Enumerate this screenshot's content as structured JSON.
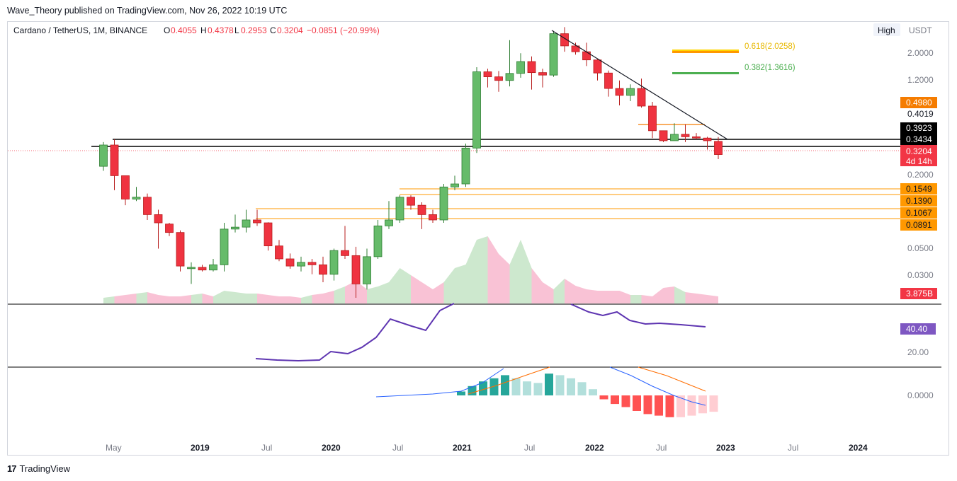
{
  "header": {
    "published_text": "Wave_Theory published on TradingView.com, Nov 26, 2022 10:19 UTC"
  },
  "legend": {
    "symbol": "Cardano / TetherUS, 1M, BINANCE",
    "o_label": "O",
    "o_value": "0.4055",
    "h_label": "H",
    "h_value": "0.4378",
    "l_label": "L",
    "l_value": "0.2953",
    "c_label": "C",
    "c_value": "0.3204",
    "change": "−0.0851 (−20.99%)"
  },
  "controls": {
    "scale_mode": "High",
    "currency": "USDT"
  },
  "colors": {
    "up": "#26a69a",
    "up_body": "#4caf50",
    "down": "#f23645",
    "orange": "#ff9800",
    "black": "#000000",
    "purple": "#7e57c2",
    "macd_blue": "#2962ff"
  },
  "fib_levels": [
    {
      "label": "0.618(2.0258)",
      "color": "#ffd500"
    },
    {
      "label": "0.382(1.3616)",
      "color": "#4caf50"
    }
  ],
  "price_axis": {
    "ticks": [
      "2.0000",
      "1.2000",
      "0.4019",
      "0.2000",
      "0.0500",
      "0.0300"
    ]
  },
  "price_labels": [
    {
      "text": "0.4980",
      "bg": "#f57c00",
      "fg": "#ffffff"
    },
    {
      "text": "0.3923",
      "bg": "#000000",
      "fg": "#ffffff"
    },
    {
      "text": "0.3434",
      "bg": "#000000",
      "fg": "#ffffff"
    },
    {
      "text": "0.3204",
      "bg": "#f23645",
      "fg": "#ffffff"
    },
    {
      "text": "4d 14h",
      "bg": "#f23645",
      "fg": "#ffffff"
    },
    {
      "text": "0.1549",
      "bg": "#ff9800",
      "fg": "#131722"
    },
    {
      "text": "0.1390",
      "bg": "#ff9800",
      "fg": "#131722"
    },
    {
      "text": "0.1067",
      "bg": "#ff9800",
      "fg": "#131722"
    },
    {
      "text": "0.0891",
      "bg": "#ff9800",
      "fg": "#131722"
    }
  ],
  "volume_label": "3.875B",
  "rsi": {
    "value_label": "40.40",
    "tick_mid": "20.00"
  },
  "macd": {
    "tick_zero": "0.0000"
  },
  "time_axis": [
    "May",
    "2019",
    "Jul",
    "2020",
    "Jul",
    "2021",
    "Jul",
    "2022",
    "Jul",
    "2023",
    "Jul",
    "2024"
  ],
  "footer": {
    "brand": "TradingView"
  },
  "chart_data": {
    "type": "candlestick",
    "title": "Cardano / TetherUS, 1M, BINANCE",
    "scale": "log",
    "ylim": [
      0.025,
      3.0
    ],
    "series": [
      {
        "o": 0.26,
        "h": 0.4,
        "l": 0.24,
        "c": 0.38
      },
      {
        "o": 0.38,
        "h": 0.42,
        "l": 0.17,
        "c": 0.22
      },
      {
        "o": 0.22,
        "h": 0.22,
        "l": 0.13,
        "c": 0.145
      },
      {
        "o": 0.145,
        "h": 0.18,
        "l": 0.14,
        "c": 0.15
      },
      {
        "o": 0.15,
        "h": 0.16,
        "l": 0.1,
        "c": 0.11
      },
      {
        "o": 0.11,
        "h": 0.12,
        "l": 0.06,
        "c": 0.095
      },
      {
        "o": 0.093,
        "h": 0.095,
        "l": 0.075,
        "c": 0.08
      },
      {
        "o": 0.08,
        "h": 0.083,
        "l": 0.04,
        "c": 0.044
      },
      {
        "o": 0.042,
        "h": 0.047,
        "l": 0.032,
        "c": 0.043
      },
      {
        "o": 0.043,
        "h": 0.045,
        "l": 0.04,
        "c": 0.041
      },
      {
        "o": 0.041,
        "h": 0.05,
        "l": 0.04,
        "c": 0.045
      },
      {
        "o": 0.045,
        "h": 0.095,
        "l": 0.04,
        "c": 0.085
      },
      {
        "o": 0.085,
        "h": 0.11,
        "l": 0.08,
        "c": 0.088
      },
      {
        "o": 0.088,
        "h": 0.12,
        "l": 0.08,
        "c": 0.1
      },
      {
        "o": 0.1,
        "h": 0.12,
        "l": 0.09,
        "c": 0.095
      },
      {
        "o": 0.095,
        "h": 0.096,
        "l": 0.058,
        "c": 0.063
      },
      {
        "o": 0.063,
        "h": 0.07,
        "l": 0.048,
        "c": 0.05
      },
      {
        "o": 0.05,
        "h": 0.055,
        "l": 0.042,
        "c": 0.044
      },
      {
        "o": 0.044,
        "h": 0.052,
        "l": 0.04,
        "c": 0.047
      },
      {
        "o": 0.047,
        "h": 0.05,
        "l": 0.038,
        "c": 0.045
      },
      {
        "o": 0.045,
        "h": 0.052,
        "l": 0.033,
        "c": 0.038
      },
      {
        "o": 0.038,
        "h": 0.06,
        "l": 0.034,
        "c": 0.058
      },
      {
        "o": 0.058,
        "h": 0.09,
        "l": 0.05,
        "c": 0.053
      },
      {
        "o": 0.053,
        "h": 0.062,
        "l": 0.025,
        "c": 0.032
      },
      {
        "o": 0.032,
        "h": 0.06,
        "l": 0.029,
        "c": 0.052
      },
      {
        "o": 0.052,
        "h": 0.1,
        "l": 0.05,
        "c": 0.09
      },
      {
        "o": 0.09,
        "h": 0.14,
        "l": 0.085,
        "c": 0.1
      },
      {
        "o": 0.1,
        "h": 0.155,
        "l": 0.095,
        "c": 0.15
      },
      {
        "o": 0.15,
        "h": 0.155,
        "l": 0.12,
        "c": 0.13
      },
      {
        "o": 0.13,
        "h": 0.137,
        "l": 0.085,
        "c": 0.11
      },
      {
        "o": 0.11,
        "h": 0.12,
        "l": 0.095,
        "c": 0.1
      },
      {
        "o": 0.1,
        "h": 0.19,
        "l": 0.095,
        "c": 0.18
      },
      {
        "o": 0.18,
        "h": 0.22,
        "l": 0.17,
        "c": 0.19
      },
      {
        "o": 0.19,
        "h": 0.39,
        "l": 0.18,
        "c": 0.36
      },
      {
        "o": 0.36,
        "h": 1.52,
        "l": 0.33,
        "c": 1.4
      },
      {
        "o": 1.4,
        "h": 1.48,
        "l": 1.06,
        "c": 1.28
      },
      {
        "o": 1.28,
        "h": 1.42,
        "l": 0.98,
        "c": 1.2
      },
      {
        "o": 1.2,
        "h": 2.46,
        "l": 1.08,
        "c": 1.36
      },
      {
        "o": 1.36,
        "h": 1.95,
        "l": 1.26,
        "c": 1.68
      },
      {
        "o": 1.68,
        "h": 1.84,
        "l": 1.02,
        "c": 1.38
      },
      {
        "o": 1.38,
        "h": 1.48,
        "l": 1.06,
        "c": 1.32
      },
      {
        "o": 1.32,
        "h": 2.9,
        "l": 1.28,
        "c": 2.76
      },
      {
        "o": 2.76,
        "h": 3.1,
        "l": 2.0,
        "c": 2.22
      },
      {
        "o": 2.22,
        "h": 2.35,
        "l": 1.9,
        "c": 2.0
      },
      {
        "o": 2.0,
        "h": 2.35,
        "l": 1.55,
        "c": 1.73
      },
      {
        "o": 1.73,
        "h": 1.76,
        "l": 1.2,
        "c": 1.37
      },
      {
        "o": 1.37,
        "h": 1.43,
        "l": 0.9,
        "c": 1.04
      },
      {
        "o": 1.04,
        "h": 1.2,
        "l": 0.77,
        "c": 0.92
      },
      {
        "o": 0.92,
        "h": 1.12,
        "l": 0.83,
        "c": 1.04
      },
      {
        "o": 1.04,
        "h": 1.24,
        "l": 0.74,
        "c": 0.76
      },
      {
        "o": 0.76,
        "h": 0.82,
        "l": 0.43,
        "c": 0.49
      },
      {
        "o": 0.49,
        "h": 0.49,
        "l": 0.4,
        "c": 0.41
      },
      {
        "o": 0.41,
        "h": 0.56,
        "l": 0.41,
        "c": 0.46
      },
      {
        "o": 0.46,
        "h": 0.55,
        "l": 0.4,
        "c": 0.44
      },
      {
        "o": 0.44,
        "h": 0.47,
        "l": 0.42,
        "c": 0.43
      },
      {
        "o": 0.43,
        "h": 0.44,
        "l": 0.35,
        "c": 0.41
      },
      {
        "o": 0.4055,
        "h": 0.4378,
        "l": 0.2953,
        "c": 0.3204
      }
    ]
  }
}
